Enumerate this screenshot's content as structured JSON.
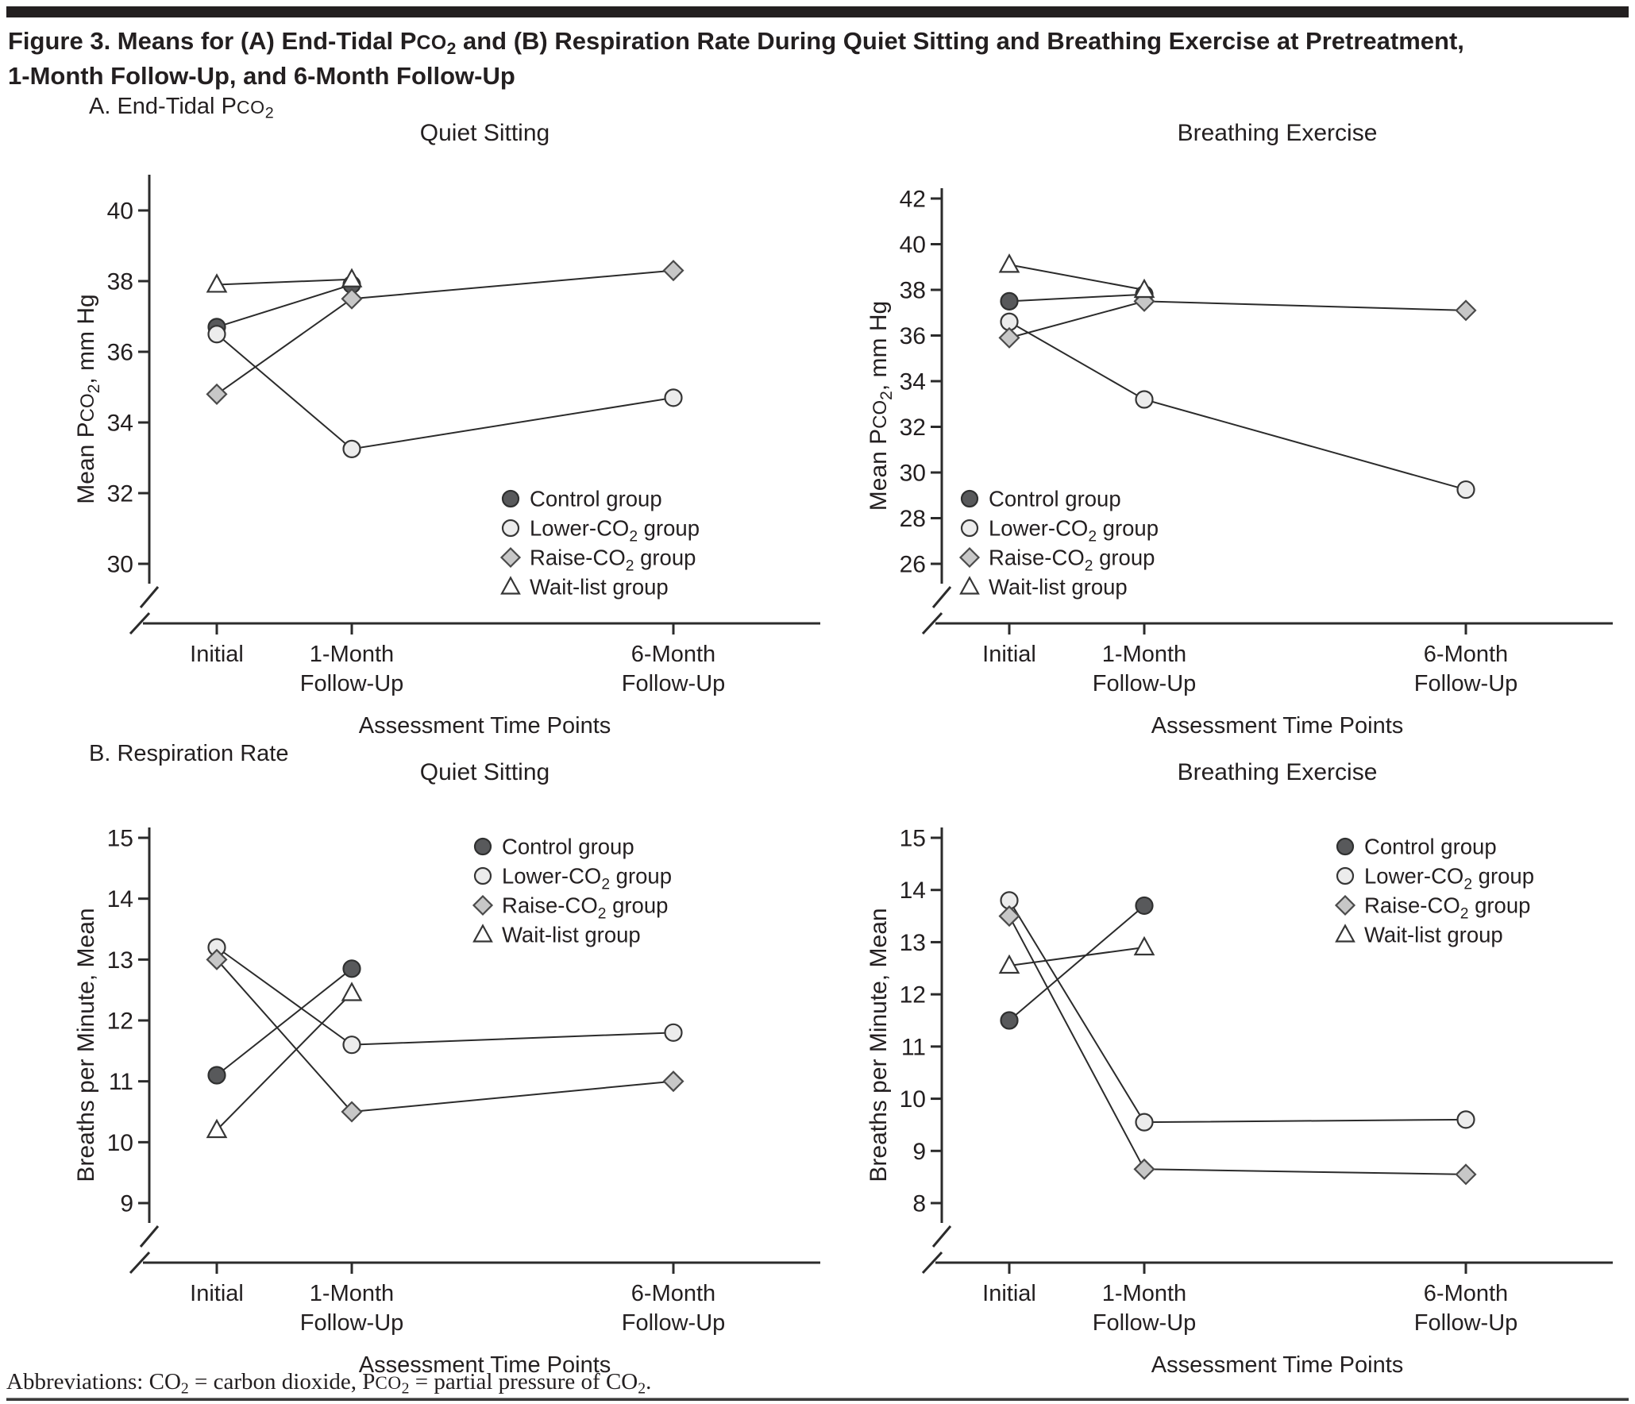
{
  "figure": {
    "title": "Figure 3. Means for (A) End-Tidal PCO2 and (B) Respiration Rate During Quiet Sitting and Breathing Exercise at Pretreatment,\n1-Month Follow-Up, and 6-Month Follow-Up",
    "panel_a_label": "A. End-Tidal PCO2",
    "panel_b_label": "B. Respiration Rate",
    "abbreviations": "Abbreviations: CO2 = carbon dioxide, PCO2 = partial pressure of CO2.",
    "text_color": "#231f20",
    "rule_color": "#231f20",
    "line_color": "#2b2b2b"
  },
  "groups": [
    {
      "name": "Control group",
      "marker": "circle",
      "fill": "#58595b",
      "stroke": "#2f3030"
    },
    {
      "name": "Lower-CO2 group",
      "marker": "circle",
      "fill": "#ececec",
      "stroke": "#363636"
    },
    {
      "name": "Raise-CO2 group",
      "marker": "diamond",
      "fill": "#c7c7c7",
      "stroke": "#4a4a4a"
    },
    {
      "name": "Wait-list group",
      "marker": "triangle",
      "fill": "#ffffff",
      "stroke": "#363636"
    }
  ],
  "chart_data": [
    {
      "id": "pco2-quiet-sitting",
      "panel": "A",
      "type": "line",
      "title": "Quiet Sitting",
      "xlabel": "Assessment Time Points",
      "ylabel": "Mean PCO2, mm Hg",
      "x_categories": [
        "Initial",
        "1-Month\nFollow-Up",
        "6-Month\nFollow-Up"
      ],
      "x_months": [
        0,
        1,
        6
      ],
      "yticks": [
        30,
        32,
        34,
        36,
        38,
        40
      ],
      "ylim": [
        30,
        41
      ],
      "axis_break": true,
      "grid": false,
      "legend_position": "lower-right",
      "legend_anchor": [
        555,
        483
      ],
      "y_top_pad": 45,
      "series": [
        {
          "group": 0,
          "values": [
            36.7,
            37.9,
            null
          ]
        },
        {
          "group": 1,
          "values": [
            36.5,
            33.25,
            34.7
          ]
        },
        {
          "group": 2,
          "values": [
            34.8,
            37.5,
            38.3
          ]
        },
        {
          "group": 3,
          "values": [
            37.9,
            38.05,
            null
          ]
        }
      ]
    },
    {
      "id": "pco2-breathing-exercise",
      "panel": "A",
      "type": "line",
      "title": "Breathing Exercise",
      "xlabel": "Assessment Time Points",
      "ylabel": "Mean PCO2, mm Hg",
      "x_categories": [
        "Initial",
        "1-Month\nFollow-Up",
        "6-Month\nFollow-Up"
      ],
      "x_months": [
        0,
        1,
        6
      ],
      "yticks": [
        26,
        28,
        30,
        32,
        34,
        36,
        38,
        40,
        42
      ],
      "ylim": [
        26,
        42
      ],
      "axis_break": true,
      "grid": false,
      "legend_position": "lower-left",
      "legend_anchor": [
        135,
        483
      ],
      "y_top_pad": 13,
      "series": [
        {
          "group": 0,
          "values": [
            37.5,
            37.8,
            null
          ]
        },
        {
          "group": 1,
          "values": [
            36.6,
            33.2,
            29.25
          ]
        },
        {
          "group": 2,
          "values": [
            35.9,
            37.5,
            37.1
          ]
        },
        {
          "group": 3,
          "values": [
            39.1,
            38.0,
            null
          ]
        }
      ]
    },
    {
      "id": "respiration-quiet-sitting",
      "panel": "B",
      "type": "line",
      "title": "Quiet Sitting",
      "xlabel": "Assessment Time Points",
      "ylabel": "Breaths per Minute, Mean",
      "x_categories": [
        "Initial",
        "1-Month\nFollow-Up",
        "6-Month\nFollow-Up"
      ],
      "x_months": [
        0,
        1,
        6
      ],
      "yticks": [
        9,
        10,
        11,
        12,
        13,
        14,
        15
      ],
      "ylim": [
        9,
        15
      ],
      "axis_break": true,
      "grid": false,
      "legend_position": "upper-right",
      "legend_anchor": [
        520,
        116
      ],
      "y_top_pad": 13,
      "series": [
        {
          "group": 0,
          "values": [
            11.1,
            12.85,
            null
          ]
        },
        {
          "group": 1,
          "values": [
            13.2,
            11.6,
            11.8
          ]
        },
        {
          "group": 2,
          "values": [
            13.0,
            10.5,
            11.0
          ]
        },
        {
          "group": 3,
          "values": [
            10.2,
            12.45,
            null
          ]
        }
      ]
    },
    {
      "id": "respiration-breathing-exercise",
      "panel": "B",
      "type": "line",
      "title": "Breathing Exercise",
      "xlabel": "Assessment Time Points",
      "ylabel": "Breaths per Minute, Mean",
      "x_categories": [
        "Initial",
        "1-Month\nFollow-Up",
        "6-Month\nFollow-Up"
      ],
      "x_months": [
        0,
        1,
        6
      ],
      "yticks": [
        8,
        9,
        10,
        11,
        12,
        13,
        14,
        15
      ],
      "ylim": [
        8,
        15
      ],
      "axis_break": true,
      "grid": false,
      "legend_position": "upper-right",
      "legend_anchor": [
        608,
        116
      ],
      "y_top_pad": 13,
      "series": [
        {
          "group": 0,
          "values": [
            11.5,
            13.7,
            null
          ]
        },
        {
          "group": 1,
          "values": [
            13.8,
            9.55,
            9.6
          ]
        },
        {
          "group": 2,
          "values": [
            13.5,
            8.65,
            8.55
          ]
        },
        {
          "group": 3,
          "values": [
            12.55,
            12.9,
            null
          ]
        }
      ]
    }
  ]
}
